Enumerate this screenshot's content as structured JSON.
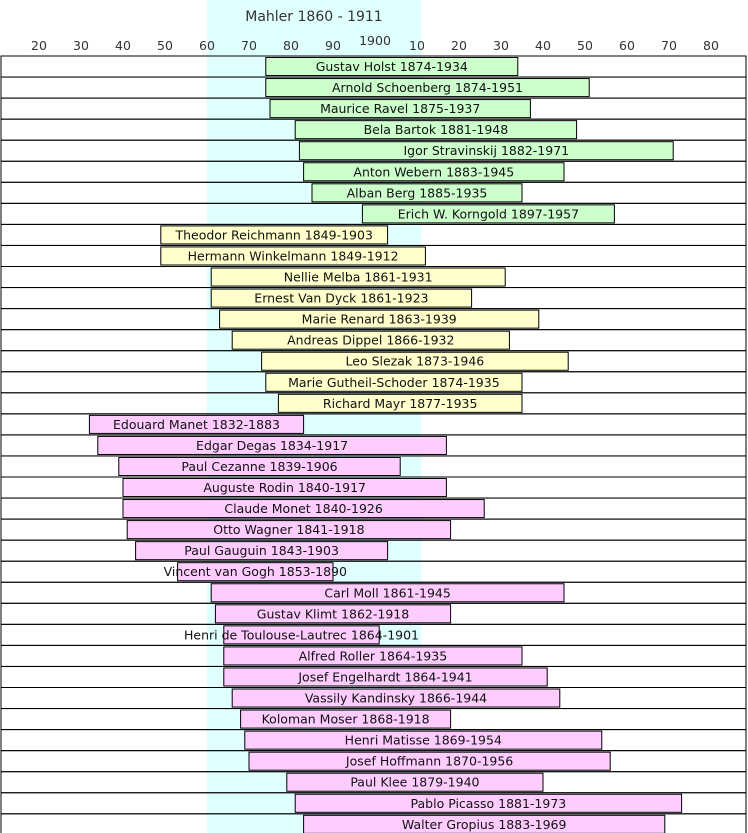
{
  "chart_data": {
    "type": "bar",
    "title": "Mahler  1860 - 1911",
    "highlight_span": [
      1860,
      1911
    ],
    "x_ticks": [
      {
        "year": 1820,
        "label": "20"
      },
      {
        "year": 1830,
        "label": "30"
      },
      {
        "year": 1840,
        "label": "40"
      },
      {
        "year": 1850,
        "label": "50"
      },
      {
        "year": 1860,
        "label": "60"
      },
      {
        "year": 1870,
        "label": "70"
      },
      {
        "year": 1880,
        "label": "80"
      },
      {
        "year": 1890,
        "label": "90"
      },
      {
        "year": 1900,
        "label": "1900"
      },
      {
        "year": 1910,
        "label": "10"
      },
      {
        "year": 1920,
        "label": "20"
      },
      {
        "year": 1930,
        "label": "30"
      },
      {
        "year": 1940,
        "label": "40"
      },
      {
        "year": 1950,
        "label": "50"
      },
      {
        "year": 1960,
        "label": "60"
      },
      {
        "year": 1970,
        "label": "70"
      },
      {
        "year": 1980,
        "label": "80"
      }
    ],
    "xlim": [
      1811,
      1988
    ],
    "grid": false,
    "colors": {
      "composer": "#ccffcc",
      "performer": "#ffffcc",
      "artist": "#ffccff",
      "highlight": "#e0ffff",
      "border": "#000000"
    },
    "rows": [
      {
        "label": "Gustav Holst 1874-1934",
        "start": 1874,
        "end": 1934,
        "group": "composer"
      },
      {
        "label": "Arnold Schoenberg 1874-1951",
        "start": 1874,
        "end": 1951,
        "group": "composer"
      },
      {
        "label": "Maurice Ravel 1875-1937",
        "start": 1875,
        "end": 1937,
        "group": "composer"
      },
      {
        "label": "Bela Bartok 1881-1948",
        "start": 1881,
        "end": 1948,
        "group": "composer"
      },
      {
        "label": "Igor Stravinskij 1882-1971",
        "start": 1882,
        "end": 1971,
        "group": "composer"
      },
      {
        "label": "Anton Webern 1883-1945",
        "start": 1883,
        "end": 1945,
        "group": "composer"
      },
      {
        "label": "Alban Berg 1885-1935",
        "start": 1885,
        "end": 1935,
        "group": "composer"
      },
      {
        "label": "Erich W. Korngold 1897-1957",
        "start": 1897,
        "end": 1957,
        "group": "composer"
      },
      {
        "label": "Theodor Reichmann 1849-1903",
        "start": 1849,
        "end": 1903,
        "group": "performer"
      },
      {
        "label": "Hermann Winkelmann 1849-1912",
        "start": 1849,
        "end": 1912,
        "group": "performer"
      },
      {
        "label": "Nellie Melba 1861-1931",
        "start": 1861,
        "end": 1931,
        "group": "performer"
      },
      {
        "label": "Ernest Van Dyck 1861-1923",
        "start": 1861,
        "end": 1923,
        "group": "performer"
      },
      {
        "label": "Marie Renard 1863-1939",
        "start": 1863,
        "end": 1939,
        "group": "performer"
      },
      {
        "label": "Andreas Dippel 1866-1932",
        "start": 1866,
        "end": 1932,
        "group": "performer"
      },
      {
        "label": "Leo Slezak 1873-1946",
        "start": 1873,
        "end": 1946,
        "group": "performer"
      },
      {
        "label": "Marie Gutheil-Schoder 1874-1935",
        "start": 1874,
        "end": 1935,
        "group": "performer"
      },
      {
        "label": "Richard Mayr 1877-1935",
        "start": 1877,
        "end": 1935,
        "group": "performer"
      },
      {
        "label": "Edouard Manet 1832-1883",
        "start": 1832,
        "end": 1883,
        "group": "artist"
      },
      {
        "label": "Edgar Degas 1834-1917",
        "start": 1834,
        "end": 1917,
        "group": "artist"
      },
      {
        "label": "Paul Cezanne 1839-1906",
        "start": 1839,
        "end": 1906,
        "group": "artist"
      },
      {
        "label": "Auguste Rodin 1840-1917",
        "start": 1840,
        "end": 1917,
        "group": "artist"
      },
      {
        "label": "Claude Monet 1840-1926",
        "start": 1840,
        "end": 1926,
        "group": "artist"
      },
      {
        "label": "Otto Wagner 1841-1918",
        "start": 1841,
        "end": 1918,
        "group": "artist"
      },
      {
        "label": "Paul Gauguin 1843-1903",
        "start": 1843,
        "end": 1903,
        "group": "artist"
      },
      {
        "label": "Vincent van Gogh 1853-1890",
        "start": 1853,
        "end": 1890,
        "group": "artist"
      },
      {
        "label": "Carl Moll 1861-1945",
        "start": 1861,
        "end": 1945,
        "group": "artist"
      },
      {
        "label": "Gustav Klimt 1862-1918",
        "start": 1862,
        "end": 1918,
        "group": "artist"
      },
      {
        "label": "Henri de Toulouse-Lautrec 1864-1901",
        "start": 1864,
        "end": 1901,
        "group": "artist"
      },
      {
        "label": "Alfred Roller 1864-1935",
        "start": 1864,
        "end": 1935,
        "group": "artist"
      },
      {
        "label": "Josef Engelhardt 1864-1941",
        "start": 1864,
        "end": 1941,
        "group": "artist"
      },
      {
        "label": "Vassily Kandinsky 1866-1944",
        "start": 1866,
        "end": 1944,
        "group": "artist"
      },
      {
        "label": "Koloman Moser 1868-1918",
        "start": 1868,
        "end": 1918,
        "group": "artist"
      },
      {
        "label": "Henri Matisse 1869-1954",
        "start": 1869,
        "end": 1954,
        "group": "artist"
      },
      {
        "label": "Josef Hoffmann 1870-1956",
        "start": 1870,
        "end": 1956,
        "group": "artist"
      },
      {
        "label": "Paul Klee 1879-1940",
        "start": 1879,
        "end": 1940,
        "group": "artist"
      },
      {
        "label": "Pablo Picasso 1881-1973",
        "start": 1881,
        "end": 1973,
        "group": "artist"
      },
      {
        "label": "Walter Gropius 1883-1969",
        "start": 1883,
        "end": 1969,
        "group": "artist"
      }
    ]
  }
}
